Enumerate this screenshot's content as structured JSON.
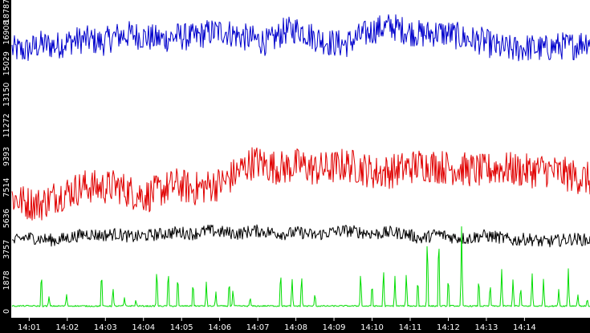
{
  "chart_data": {
    "type": "line",
    "title": "",
    "xlabel": "",
    "ylabel": "",
    "ylim": [
      0,
      18787
    ],
    "yticks": [
      0,
      1878,
      3757,
      5636,
      7514,
      9393,
      11272,
      13150,
      15029,
      16908,
      18787
    ],
    "xlim_minutes": [
      0.55,
      15.72
    ],
    "xticks": [
      {
        "label": "14:01",
        "m": 1
      },
      {
        "label": "14:02",
        "m": 2
      },
      {
        "label": "14:03",
        "m": 3
      },
      {
        "label": "14:04",
        "m": 4
      },
      {
        "label": "14:05",
        "m": 5
      },
      {
        "label": "14:06",
        "m": 6
      },
      {
        "label": "14:07",
        "m": 7
      },
      {
        "label": "14:08",
        "m": 8
      },
      {
        "label": "14:09",
        "m": 9
      },
      {
        "label": "14:10",
        "m": 10
      },
      {
        "label": "14:11",
        "m": 11
      },
      {
        "label": "14:12",
        "m": 12
      },
      {
        "label": "14:13",
        "m": 13
      },
      {
        "label": "14:14",
        "m": 14
      }
    ],
    "grid": false,
    "legend": "none",
    "series": [
      {
        "color": "#0000cc",
        "x": [
          0.55,
          0.9,
          1.3,
          1.7,
          2.1,
          2.5,
          2.9,
          3.3,
          3.7,
          4.1,
          4.5,
          4.9,
          5.3,
          5.7,
          6.1,
          6.5,
          6.9,
          7.3,
          7.7,
          8.1,
          8.5,
          8.9,
          9.3,
          9.7,
          10.1,
          10.5,
          10.9,
          11.3,
          11.7,
          12.1,
          12.5,
          12.9,
          13.3,
          13.7,
          14.1,
          14.5,
          14.9,
          15.3,
          15.72
        ],
        "y": [
          15900,
          15800,
          16200,
          16100,
          16400,
          16500,
          16300,
          16700,
          16800,
          16600,
          16500,
          16700,
          16600,
          16900,
          17000,
          16700,
          16500,
          16300,
          17000,
          17100,
          16600,
          16300,
          16200,
          16700,
          17100,
          17300,
          17000,
          16800,
          16900,
          16800,
          16500,
          16400,
          16000,
          15900,
          16000,
          15900,
          16100,
          16100,
          16500
        ],
        "noise": 850
      },
      {
        "color": "#e00000",
        "x": [
          0.55,
          0.9,
          1.3,
          1.7,
          2.1,
          2.5,
          2.9,
          3.3,
          3.7,
          4.1,
          4.5,
          4.9,
          5.3,
          5.7,
          6.1,
          6.5,
          6.9,
          7.3,
          7.7,
          8.1,
          8.5,
          8.9,
          9.3,
          9.7,
          10.1,
          10.5,
          10.9,
          11.3,
          11.7,
          12.1,
          12.5,
          12.9,
          13.3,
          13.7,
          14.1,
          14.5,
          14.9,
          15.3,
          15.72
        ],
        "y": [
          6900,
          6600,
          6500,
          7000,
          7300,
          7600,
          7500,
          7600,
          7200,
          7000,
          7400,
          7700,
          7400,
          7600,
          7800,
          8500,
          9100,
          8800,
          8700,
          8900,
          8600,
          8700,
          8900,
          8700,
          8400,
          8500,
          8700,
          8900,
          8800,
          8700,
          8600,
          8500,
          8700,
          8600,
          8500,
          8600,
          8400,
          8200,
          8000
        ],
        "noise": 1050
      },
      {
        "color": "#000000",
        "x": [
          0.55,
          0.9,
          1.3,
          1.7,
          2.1,
          2.5,
          2.9,
          3.3,
          3.7,
          4.1,
          4.5,
          4.9,
          5.3,
          5.7,
          6.1,
          6.5,
          6.9,
          7.3,
          7.7,
          8.1,
          8.5,
          8.9,
          9.3,
          9.7,
          10.1,
          10.5,
          10.9,
          11.3,
          11.7,
          12.1,
          12.5,
          12.9,
          13.3,
          13.7,
          14.1,
          14.5,
          14.9,
          15.3,
          15.72
        ],
        "y": [
          4200,
          4500,
          4400,
          4300,
          4500,
          4700,
          4600,
          4700,
          4500,
          4600,
          4700,
          4800,
          4700,
          4900,
          4800,
          4700,
          4900,
          4800,
          4700,
          4800,
          4600,
          4800,
          4900,
          4800,
          4700,
          4800,
          4700,
          4400,
          4700,
          4500,
          4400,
          4600,
          4500,
          4300,
          4400,
          4200,
          4300,
          4400,
          4300
        ],
        "noise": 380
      },
      {
        "color": "#00dd00",
        "baseline": 320,
        "x": [
          0.55,
          0.9,
          1.3,
          1.7,
          2.1,
          2.5,
          2.9,
          3.3,
          3.7,
          4.1,
          4.5,
          4.9,
          5.3,
          5.7,
          6.1,
          6.5,
          6.9,
          7.3,
          7.7,
          8.1,
          8.5,
          8.9,
          9.3,
          9.7,
          10.1,
          10.5,
          10.9,
          11.3,
          11.7,
          12.1,
          12.5,
          12.9,
          13.3,
          13.7,
          14.1,
          14.5,
          14.9,
          15.3,
          15.72
        ],
        "y": [
          320,
          330,
          320,
          320,
          330,
          320,
          320,
          320,
          330,
          320,
          320,
          320,
          330,
          320,
          320,
          320,
          320,
          330,
          320,
          320,
          320,
          320,
          330,
          320,
          320,
          320,
          330,
          320,
          320,
          330,
          320,
          320,
          320,
          330,
          320,
          320,
          320,
          330,
          320
        ],
        "spikes": [
          [
            1.32,
            2600
          ],
          [
            1.52,
            900
          ],
          [
            1.98,
            1100
          ],
          [
            2.9,
            2700
          ],
          [
            3.2,
            1500
          ],
          [
            3.5,
            800
          ],
          [
            3.8,
            700
          ],
          [
            4.35,
            2900
          ],
          [
            4.65,
            2800
          ],
          [
            4.9,
            2400
          ],
          [
            5.3,
            2000
          ],
          [
            5.65,
            1800
          ],
          [
            5.9,
            1200
          ],
          [
            6.25,
            2100
          ],
          [
            6.35,
            1400
          ],
          [
            6.8,
            900
          ],
          [
            7.6,
            2700
          ],
          [
            7.9,
            2100
          ],
          [
            8.15,
            2400
          ],
          [
            8.5,
            1200
          ],
          [
            9.7,
            2600
          ],
          [
            10.0,
            1900
          ],
          [
            10.3,
            2800
          ],
          [
            10.6,
            2100
          ],
          [
            10.9,
            2500
          ],
          [
            11.2,
            2200
          ],
          [
            11.45,
            5100
          ],
          [
            11.75,
            5200
          ],
          [
            12.0,
            2300
          ],
          [
            12.35,
            5300
          ],
          [
            12.8,
            2200
          ],
          [
            13.1,
            1800
          ],
          [
            13.4,
            2700
          ],
          [
            13.7,
            2100
          ],
          [
            13.9,
            1600
          ],
          [
            14.2,
            2500
          ],
          [
            14.5,
            2100
          ],
          [
            14.9,
            1400
          ],
          [
            15.15,
            2700
          ],
          [
            15.4,
            1100
          ],
          [
            15.65,
            800
          ]
        ]
      }
    ]
  }
}
